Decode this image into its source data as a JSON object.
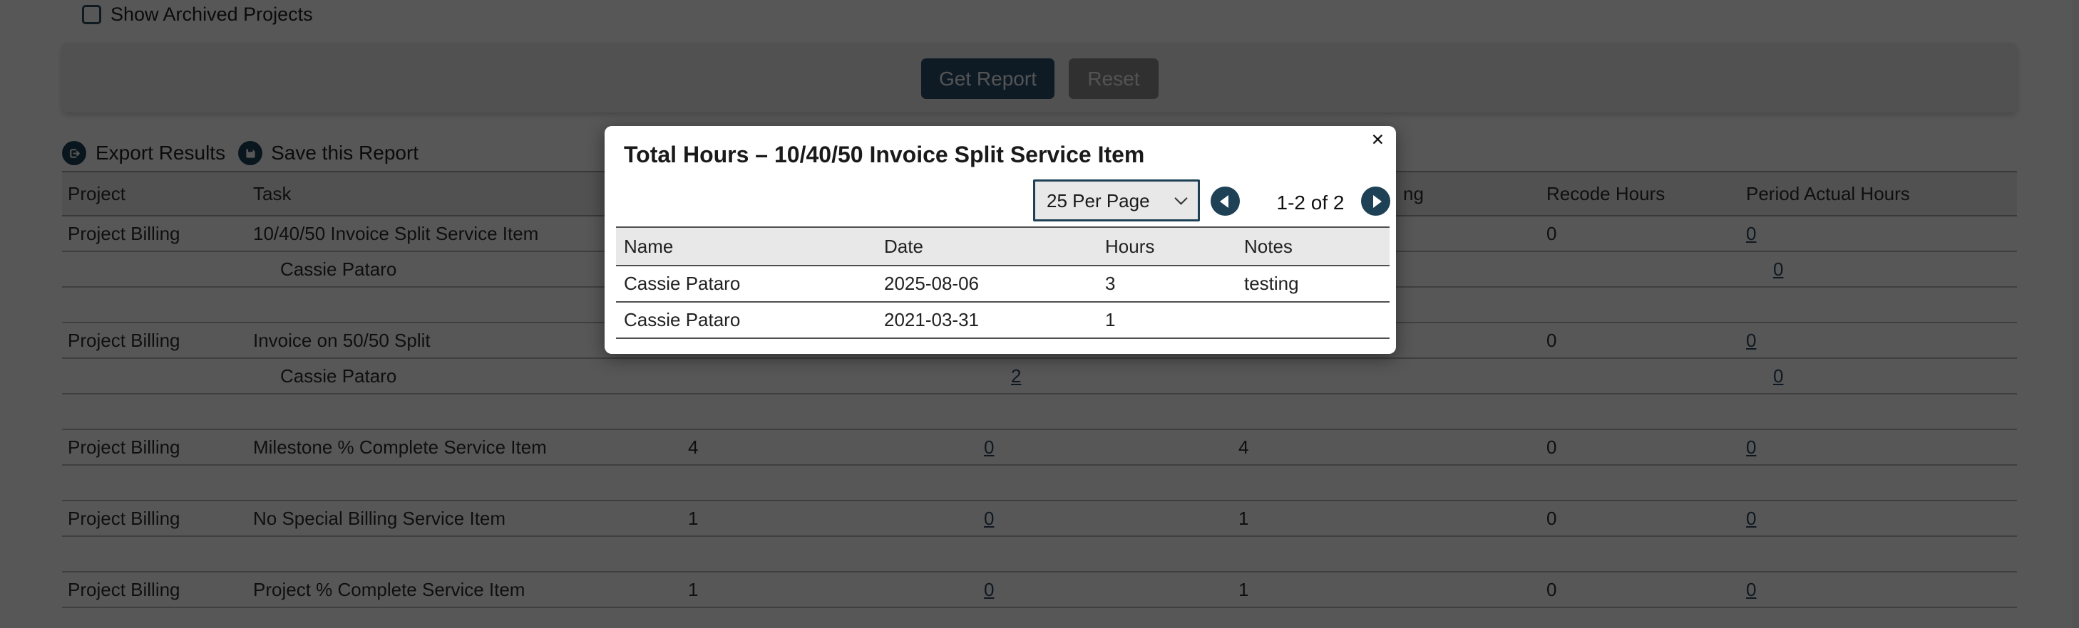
{
  "colors": {
    "accent_navy": "#1e4156",
    "button_navy": "#2a516c",
    "link_navy": "#2d4660",
    "reset_gray": "#8d8d8d",
    "panel_gray": "#ececec",
    "table_header_gray": "#ededed",
    "modal_table_header_gray": "#e8e8e8"
  },
  "page": {
    "show_archived_label": "Show Archived Projects",
    "get_report_label": "Get Report",
    "reset_label": "Reset",
    "export_results_label": "Export Results",
    "save_report_label": "Save this Report"
  },
  "report_table": {
    "headers": [
      "Project",
      "Task",
      "",
      "",
      "",
      "ng",
      "Recode Hours",
      "Period Actual Hours"
    ],
    "rows": [
      {
        "sub": false,
        "cells": [
          "Project Billing",
          "10/40/50 Invoice Split Service Item",
          "",
          "",
          "",
          "",
          "0",
          {
            "t": "0",
            "link": true
          }
        ]
      },
      {
        "sub": true,
        "cells": [
          "",
          "Cassie Pataro",
          "",
          "",
          "",
          "",
          "",
          {
            "t": "0",
            "link": true
          }
        ]
      },
      {
        "sub": false,
        "cells": [
          "",
          "",
          "",
          "",
          "",
          "",
          "",
          ""
        ]
      },
      {
        "sub": false,
        "cells": [
          "Project Billing",
          "Invoice on 50/50 Split",
          "",
          "",
          "",
          "",
          "0",
          {
            "t": "0",
            "link": true
          }
        ]
      },
      {
        "sub": true,
        "cells": [
          "",
          "Cassie Pataro",
          "",
          {
            "t": "2",
            "link": true
          },
          "",
          "",
          "",
          {
            "t": "0",
            "link": true
          }
        ]
      },
      {
        "sub": false,
        "cells": [
          "",
          "",
          "",
          "",
          "",
          "",
          "",
          ""
        ]
      },
      {
        "sub": false,
        "cells": [
          "Project Billing",
          "Milestone % Complete Service Item",
          "4",
          {
            "t": "0",
            "link": true
          },
          "4",
          "",
          "0",
          {
            "t": "0",
            "link": true
          }
        ]
      },
      {
        "sub": false,
        "cells": [
          "",
          "",
          "",
          "",
          "",
          "",
          "",
          ""
        ]
      },
      {
        "sub": false,
        "cells": [
          "Project Billing",
          "No Special Billing Service Item",
          "1",
          {
            "t": "0",
            "link": true
          },
          "1",
          "",
          "0",
          {
            "t": "0",
            "link": true
          }
        ]
      },
      {
        "sub": false,
        "cells": [
          "",
          "",
          "",
          "",
          "",
          "",
          "",
          ""
        ]
      },
      {
        "sub": false,
        "cells": [
          "Project Billing",
          "Project % Complete Service Item",
          "1",
          {
            "t": "0",
            "link": true
          },
          "1",
          "",
          "0",
          {
            "t": "0",
            "link": true
          }
        ]
      },
      {
        "sub": false,
        "cells": [
          "",
          "",
          "",
          "",
          "",
          "",
          "",
          ""
        ]
      }
    ]
  },
  "modal": {
    "title": "Total Hours – 10/40/50 Invoice Split Service Item",
    "close_label": "✕",
    "per_page_value": "25 Per Page",
    "pagination_text": "1-2 of 2",
    "table": {
      "headers": [
        "Name",
        "Date",
        "Hours",
        "Notes"
      ],
      "rows": [
        [
          "Cassie Pataro",
          "2025-08-06",
          "3",
          "testing"
        ],
        [
          "Cassie Pataro",
          "2021-03-31",
          "1",
          ""
        ]
      ]
    }
  }
}
